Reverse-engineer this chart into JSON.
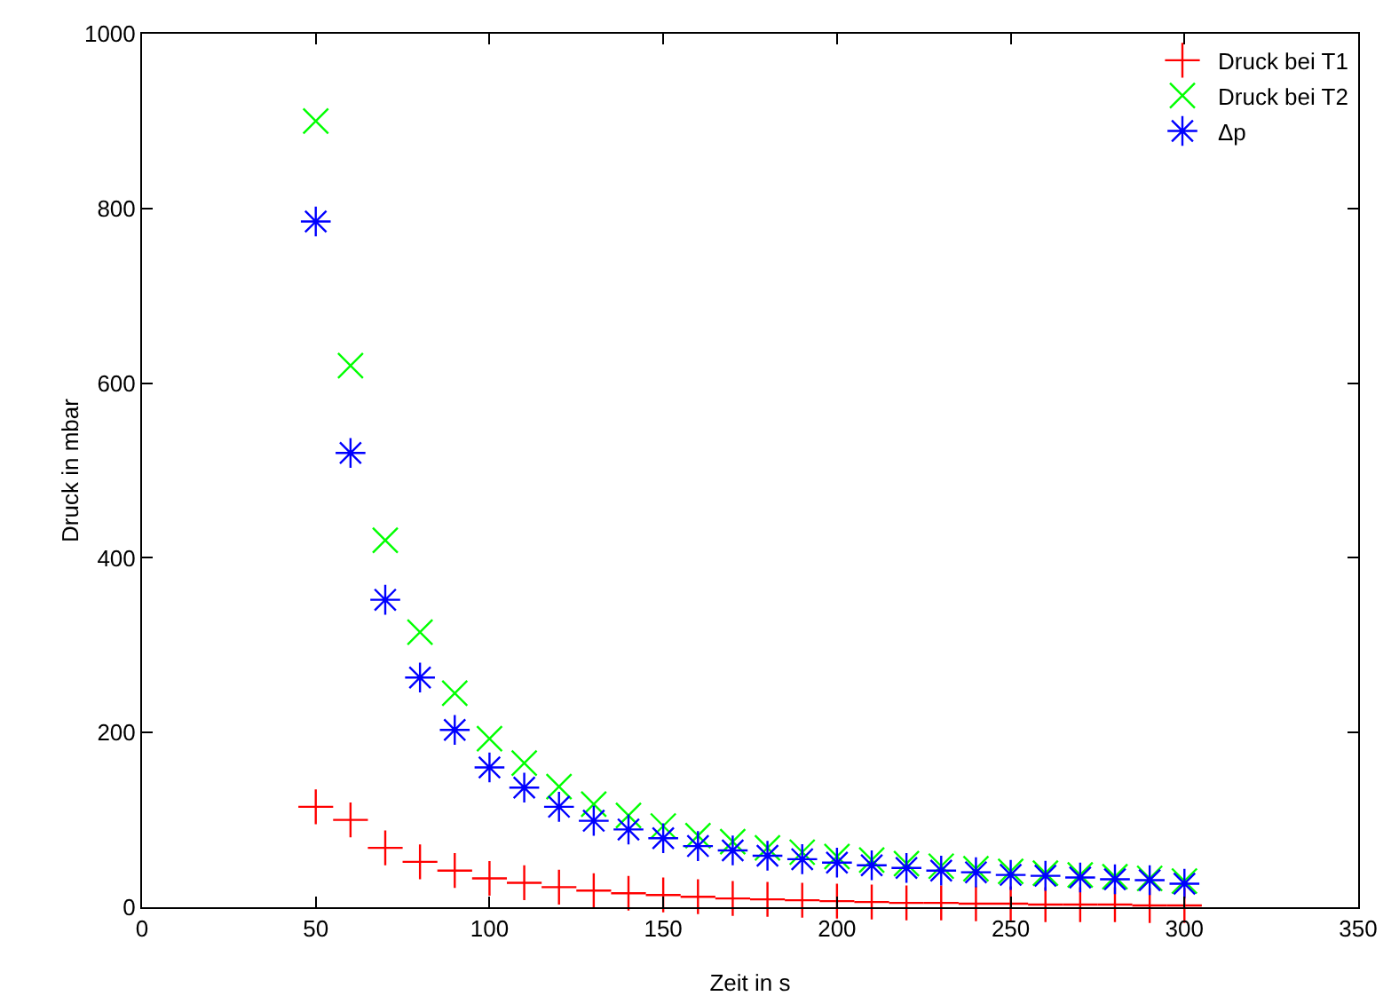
{
  "chart_data": {
    "type": "scatter",
    "xlabel": "Zeit in s",
    "ylabel": "Druck in mbar",
    "x": [
      50,
      60,
      70,
      80,
      90,
      100,
      110,
      120,
      130,
      140,
      150,
      160,
      170,
      180,
      190,
      200,
      210,
      220,
      230,
      240,
      250,
      260,
      270,
      280,
      290,
      300
    ],
    "series": [
      {
        "name": "Druck bei T1",
        "color": "#ff0000",
        "marker": "cross",
        "values": [
          115,
          100,
          68,
          52,
          42,
          33,
          28,
          23,
          19,
          16,
          14,
          12,
          10,
          9,
          8,
          7,
          6,
          5,
          5,
          4,
          4,
          3,
          3,
          3,
          2,
          2
        ]
      },
      {
        "name": "Druck bei T2",
        "color": "#00ff00",
        "marker": "x",
        "values": [
          900,
          620,
          420,
          315,
          245,
          193,
          165,
          138,
          118,
          105,
          93,
          82,
          75,
          68,
          63,
          58,
          54,
          50,
          47,
          44,
          41,
          39,
          37,
          35,
          33,
          30
        ]
      },
      {
        "name": "Δp",
        "color": "#0000ff",
        "marker": "cross",
        "values": [
          785,
          520,
          352,
          263,
          203,
          160,
          137,
          115,
          99,
          89,
          79,
          70,
          65,
          59,
          55,
          51,
          48,
          45,
          42,
          40,
          37,
          36,
          34,
          32,
          31,
          27
        ]
      }
    ],
    "xlim": [
      0,
      350
    ],
    "xticks": [
      0,
      50,
      100,
      150,
      200,
      250,
      300,
      350
    ],
    "ylim": [
      0,
      1000
    ],
    "yticks": [
      0,
      200,
      400,
      600,
      800,
      1000
    ],
    "grid": false,
    "legend": "top right"
  }
}
